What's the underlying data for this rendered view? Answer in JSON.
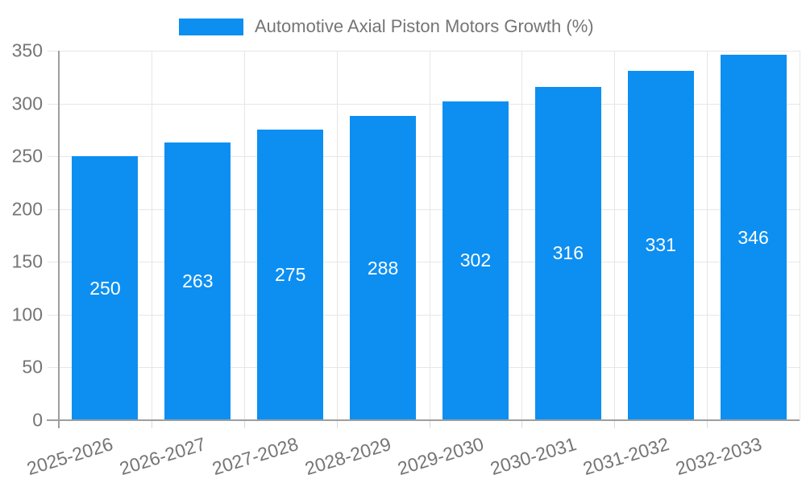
{
  "chart_data": {
    "type": "bar",
    "title": "",
    "legend": {
      "label": "Automotive Axial Piston Motors Growth (%)",
      "position": "top"
    },
    "categories": [
      "2025-2026",
      "2026-2027",
      "2027-2028",
      "2028-2029",
      "2029-2030",
      "2030-2031",
      "2031-2032",
      "2032-2033"
    ],
    "series": [
      {
        "name": "Automotive Axial Piston Motors Growth (%)",
        "values": [
          250,
          263,
          275,
          288,
          302,
          316,
          331,
          346
        ]
      }
    ],
    "bar_value_labels": [
      "250",
      "263",
      "275",
      "288",
      "302",
      "316",
      "331",
      "346"
    ],
    "xlabel": "",
    "ylabel": "",
    "ylim": [
      0,
      350
    ],
    "yticks": [
      0,
      50,
      100,
      150,
      200,
      250,
      300,
      350
    ],
    "ytick_labels": [
      "0",
      "50",
      "100",
      "150",
      "200",
      "250",
      "300",
      "350"
    ],
    "grid": true,
    "x_label_rotation_deg": -17
  },
  "colors": {
    "bar": "#0D8FF2",
    "grid": "#e6e6e6",
    "axis": "#9e9e9e",
    "tick_text": "#757575",
    "bar_label_text": "#ffffff",
    "background": "#ffffff"
  }
}
